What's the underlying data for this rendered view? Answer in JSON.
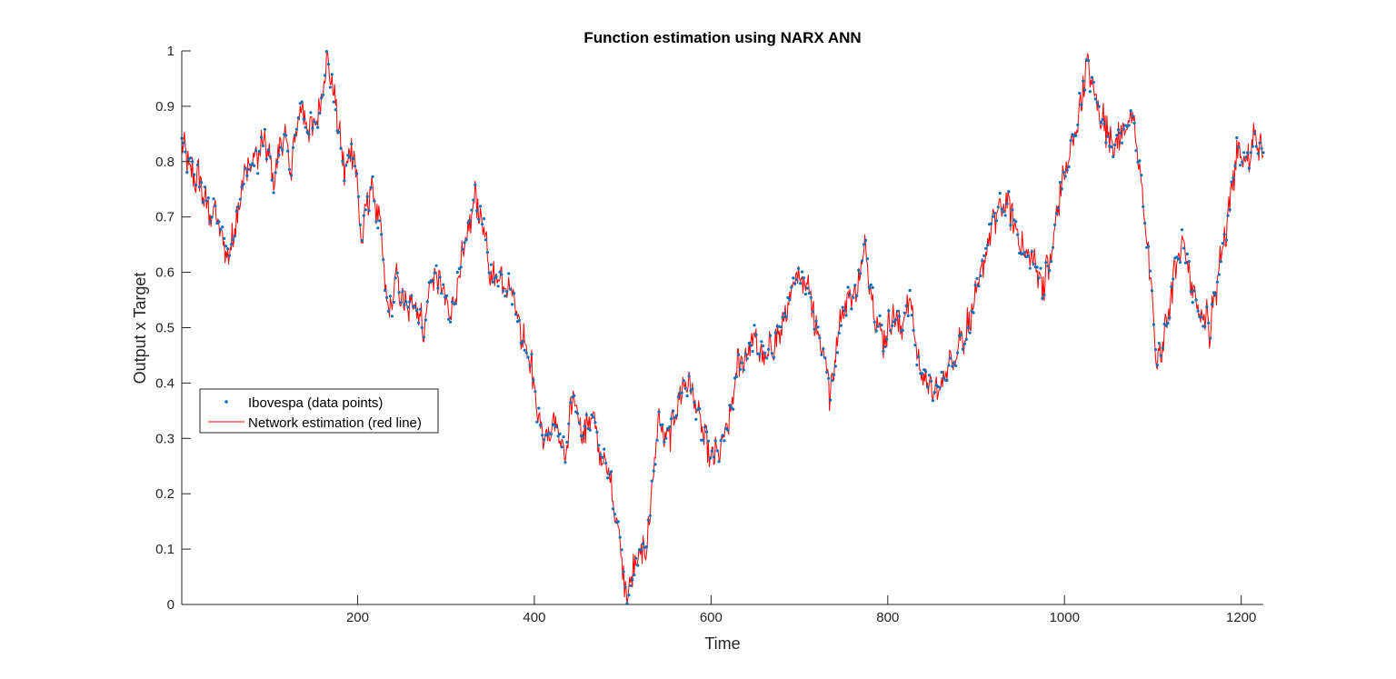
{
  "chart_data": {
    "type": "line",
    "title": "Function estimation using NARX ANN",
    "xlabel": "Time",
    "ylabel": "Output x Target",
    "xlim": [
      1,
      1225
    ],
    "ylim": [
      0,
      1
    ],
    "xticks": [
      200,
      400,
      600,
      800,
      1000,
      1200
    ],
    "yticks": [
      0,
      0.1,
      0.2,
      0.3,
      0.4,
      0.5,
      0.6,
      0.7,
      0.8,
      0.9,
      1
    ],
    "grid": false,
    "legend_position": "left-middle",
    "colors": {
      "data_points": "#0072BD",
      "estimation_line": "#FF0000",
      "axis": "#262626"
    },
    "key_points": [
      [
        1,
        0.83
      ],
      [
        10,
        0.79
      ],
      [
        20,
        0.77
      ],
      [
        30,
        0.72
      ],
      [
        40,
        0.7
      ],
      [
        50,
        0.65
      ],
      [
        55,
        0.63
      ],
      [
        65,
        0.72
      ],
      [
        75,
        0.79
      ],
      [
        85,
        0.8
      ],
      [
        95,
        0.84
      ],
      [
        105,
        0.77
      ],
      [
        115,
        0.85
      ],
      [
        125,
        0.79
      ],
      [
        135,
        0.9
      ],
      [
        145,
        0.86
      ],
      [
        155,
        0.87
      ],
      [
        165,
        0.99
      ],
      [
        175,
        0.9
      ],
      [
        185,
        0.78
      ],
      [
        195,
        0.83
      ],
      [
        205,
        0.66
      ],
      [
        215,
        0.76
      ],
      [
        225,
        0.68
      ],
      [
        235,
        0.52
      ],
      [
        245,
        0.59
      ],
      [
        255,
        0.53
      ],
      [
        265,
        0.55
      ],
      [
        275,
        0.5
      ],
      [
        285,
        0.6
      ],
      [
        295,
        0.58
      ],
      [
        305,
        0.51
      ],
      [
        315,
        0.61
      ],
      [
        325,
        0.66
      ],
      [
        332,
        0.74
      ],
      [
        340,
        0.7
      ],
      [
        350,
        0.6
      ],
      [
        360,
        0.59
      ],
      [
        375,
        0.57
      ],
      [
        385,
        0.49
      ],
      [
        395,
        0.45
      ],
      [
        405,
        0.33
      ],
      [
        415,
        0.3
      ],
      [
        425,
        0.33
      ],
      [
        435,
        0.26
      ],
      [
        445,
        0.39
      ],
      [
        455,
        0.3
      ],
      [
        465,
        0.34
      ],
      [
        475,
        0.27
      ],
      [
        485,
        0.23
      ],
      [
        495,
        0.14
      ],
      [
        505,
        0.01
      ],
      [
        515,
        0.08
      ],
      [
        525,
        0.1
      ],
      [
        530,
        0.15
      ],
      [
        540,
        0.33
      ],
      [
        550,
        0.3
      ],
      [
        560,
        0.35
      ],
      [
        570,
        0.4
      ],
      [
        580,
        0.38
      ],
      [
        590,
        0.31
      ],
      [
        600,
        0.26
      ],
      [
        610,
        0.28
      ],
      [
        620,
        0.32
      ],
      [
        630,
        0.43
      ],
      [
        640,
        0.45
      ],
      [
        650,
        0.48
      ],
      [
        660,
        0.44
      ],
      [
        670,
        0.47
      ],
      [
        680,
        0.5
      ],
      [
        690,
        0.55
      ],
      [
        700,
        0.6
      ],
      [
        710,
        0.58
      ],
      [
        720,
        0.5
      ],
      [
        730,
        0.44
      ],
      [
        735,
        0.37
      ],
      [
        745,
        0.51
      ],
      [
        755,
        0.55
      ],
      [
        765,
        0.57
      ],
      [
        775,
        0.65
      ],
      [
        785,
        0.53
      ],
      [
        795,
        0.48
      ],
      [
        805,
        0.52
      ],
      [
        815,
        0.5
      ],
      [
        825,
        0.55
      ],
      [
        835,
        0.43
      ],
      [
        845,
        0.4
      ],
      [
        855,
        0.38
      ],
      [
        865,
        0.42
      ],
      [
        875,
        0.45
      ],
      [
        885,
        0.48
      ],
      [
        895,
        0.52
      ],
      [
        905,
        0.59
      ],
      [
        915,
        0.67
      ],
      [
        925,
        0.71
      ],
      [
        935,
        0.73
      ],
      [
        945,
        0.68
      ],
      [
        955,
        0.63
      ],
      [
        965,
        0.62
      ],
      [
        975,
        0.58
      ],
      [
        985,
        0.62
      ],
      [
        995,
        0.75
      ],
      [
        1005,
        0.8
      ],
      [
        1015,
        0.88
      ],
      [
        1025,
        0.97
      ],
      [
        1035,
        0.92
      ],
      [
        1045,
        0.87
      ],
      [
        1055,
        0.83
      ],
      [
        1065,
        0.85
      ],
      [
        1075,
        0.88
      ],
      [
        1085,
        0.79
      ],
      [
        1095,
        0.63
      ],
      [
        1105,
        0.43
      ],
      [
        1115,
        0.5
      ],
      [
        1125,
        0.6
      ],
      [
        1135,
        0.66
      ],
      [
        1145,
        0.56
      ],
      [
        1155,
        0.53
      ],
      [
        1165,
        0.5
      ],
      [
        1175,
        0.61
      ],
      [
        1185,
        0.7
      ],
      [
        1195,
        0.82
      ],
      [
        1205,
        0.79
      ],
      [
        1215,
        0.84
      ],
      [
        1225,
        0.8
      ]
    ],
    "series": [
      {
        "name": "Ibovespa (data points)",
        "marker": "point",
        "color": "#0072BD"
      },
      {
        "name": "Network estimation (red line)",
        "marker": "line",
        "color": "#FF0000"
      }
    ]
  }
}
